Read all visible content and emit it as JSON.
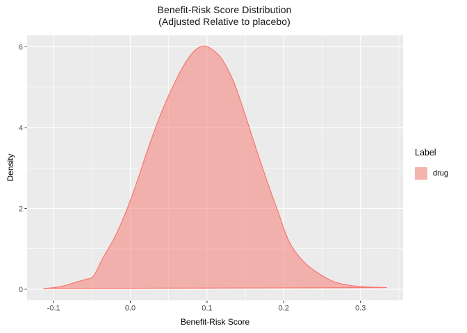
{
  "title": {
    "line1": "Benefit-Risk Score Distribution",
    "line2": "(Adjusted Relative to placebo)"
  },
  "axes": {
    "x_label": "Benefit-Risk Score",
    "y_label": "Density"
  },
  "legend": {
    "title": "Label",
    "entries": [
      {
        "label": "drug",
        "color": "#F8766D"
      }
    ]
  },
  "colors": {
    "series_stroke": "#F8766D",
    "series_fill_opacity": 0.5,
    "panel_background": "#EBEBEB",
    "gridline": "#FFFFFF",
    "tick_label_text": "#4D4D4D",
    "tick_mark": "#333333",
    "legend_key_background": "#F2F2F2"
  },
  "chart_data": {
    "type": "area",
    "subtype": "density",
    "title": "Benefit-Risk Score Distribution\n(Adjusted Relative to placebo)",
    "xlabel": "Benefit-Risk Score",
    "ylabel": "Density",
    "grid": true,
    "legend_position": "right",
    "xlim": [
      -0.1345,
      0.3555
    ],
    "ylim": [
      -0.275,
      6.283
    ],
    "x_major_ticks": [
      -0.1,
      0.0,
      0.1,
      0.2,
      0.3
    ],
    "x_tick_labels": [
      "-0.1",
      "0.0",
      "0.1",
      "0.2",
      "0.3"
    ],
    "x_minor_ticks": [
      -0.05,
      0.05,
      0.15,
      0.25,
      0.35
    ],
    "y_major_ticks": [
      0,
      2,
      4,
      6
    ],
    "y_tick_labels": [
      "0",
      "2",
      "4",
      "6"
    ],
    "y_minor_ticks": [
      1,
      3,
      5
    ],
    "series": [
      {
        "name": "drug",
        "color": "#F8766D",
        "fill_opacity": 0.5,
        "peak": {
          "x": 0.095,
          "density": 6.02
        },
        "points": [
          [
            -0.113,
            0.02
          ],
          [
            -0.103,
            0.035
          ],
          [
            -0.093,
            0.06
          ],
          [
            -0.082,
            0.11
          ],
          [
            -0.07,
            0.18
          ],
          [
            -0.058,
            0.245
          ],
          [
            -0.048,
            0.33
          ],
          [
            -0.035,
            0.8
          ],
          [
            -0.02,
            1.3
          ],
          [
            -0.005,
            1.95
          ],
          [
            0.008,
            2.62
          ],
          [
            0.022,
            3.42
          ],
          [
            0.04,
            4.35
          ],
          [
            0.055,
            5.0
          ],
          [
            0.07,
            5.55
          ],
          [
            0.083,
            5.89
          ],
          [
            0.095,
            6.02
          ],
          [
            0.107,
            5.93
          ],
          [
            0.12,
            5.68
          ],
          [
            0.135,
            5.12
          ],
          [
            0.15,
            4.3
          ],
          [
            0.165,
            3.42
          ],
          [
            0.18,
            2.58
          ],
          [
            0.192,
            1.95
          ],
          [
            0.207,
            1.18
          ],
          [
            0.225,
            0.7
          ],
          [
            0.245,
            0.4
          ],
          [
            0.265,
            0.19
          ],
          [
            0.285,
            0.1
          ],
          [
            0.305,
            0.06
          ],
          [
            0.32,
            0.05
          ],
          [
            0.334,
            0.04
          ]
        ]
      }
    ]
  }
}
